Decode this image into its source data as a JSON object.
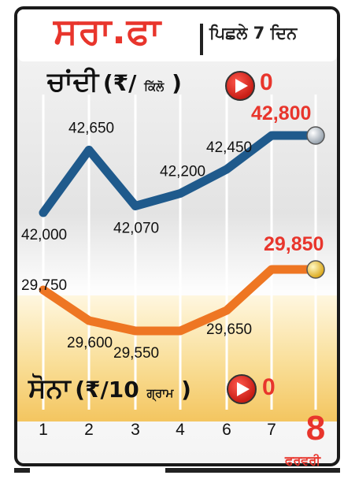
{
  "header": {
    "title": "ਸਰਾ.ਫਾ",
    "subtitle": "ਪਿਛਲੇ 7 ਦਿਨ"
  },
  "silver": {
    "name": "ਚਾਂਦੀ",
    "unit_open": "(₹/",
    "unit_word": "ਕਿੱਲੋ",
    "unit_close": ")",
    "change": "0"
  },
  "gold": {
    "name": "ਸੋਨਾ",
    "unit_open": "(₹/10",
    "unit_word": "ਗ੍ਰਾਮ",
    "unit_close": ")",
    "change": "0"
  },
  "month_label": "ਫਰਵਰੀ",
  "colors": {
    "silver_line": "#1f5a8c",
    "gold_line": "#ee7623",
    "latest_value": "#e8352c",
    "title": "#e8352c"
  },
  "icons": [
    "right-arrow-circle-icon",
    "silver-coin-icon",
    "gold-coin-icon"
  ],
  "chart_data": {
    "type": "line",
    "categories": [
      "1",
      "2",
      "3",
      "4",
      "6",
      "7",
      "8"
    ],
    "highlighted_category": "8",
    "series": [
      {
        "name": "ਚਾਂਦੀ",
        "values": [
          42000,
          42650,
          42070,
          42200,
          42450,
          42800,
          42800
        ],
        "labels": [
          "42,000",
          "42,650",
          "42,070",
          "42,200",
          "42,450",
          "42,800",
          ""
        ]
      },
      {
        "name": "ਸੋਨਾ",
        "values": [
          29750,
          29600,
          29550,
          29550,
          29650,
          29850,
          29850
        ],
        "labels": [
          "29,750",
          "29,600",
          "29,550",
          "",
          "29,650",
          "29,850",
          ""
        ]
      }
    ],
    "grid": true,
    "legend": "inline"
  }
}
